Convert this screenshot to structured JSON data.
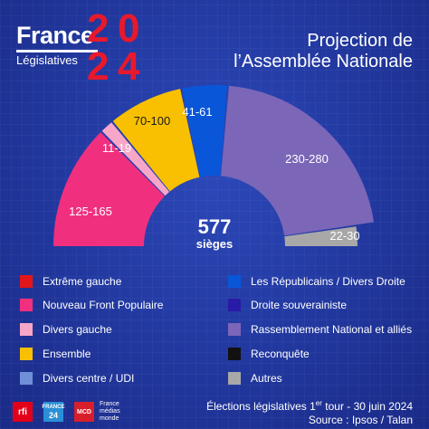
{
  "branding": {
    "france": "France",
    "legislatives": "Législatives",
    "year_digits": [
      "2",
      "0",
      "2",
      "4"
    ]
  },
  "title": {
    "line1": "Projection de",
    "line2": "l’Assemblée Nationale"
  },
  "center_total": "577",
  "center_unit": "sièges",
  "chart_data": {
    "type": "hemicycle",
    "total_seats": 577,
    "segments": [
      {
        "party": "Nouveau Front Populaire",
        "label": "125-165",
        "low": 125,
        "high": 165,
        "color": "#f0307f"
      },
      {
        "party": "Divers gauche",
        "label": "11-19",
        "low": 11,
        "high": 19,
        "color": "#f8a6c8"
      },
      {
        "party": "Ensemble",
        "label": "70-100",
        "low": 70,
        "high": 100,
        "color": "#f8c000"
      },
      {
        "party": "Les Républicains / Divers Droite",
        "label": "41-61",
        "low": 41,
        "high": 61,
        "color": "#0a56d8"
      },
      {
        "party": "Rassemblement National et alliés",
        "label": "230-280",
        "low": 230,
        "high": 280,
        "color": "#7b66b8"
      },
      {
        "party": "Autres",
        "label": "22-30",
        "low": 22,
        "high": 30,
        "color": "#a8a8a8"
      }
    ]
  },
  "legend": [
    {
      "label": "Extrême gauche",
      "color": "#e3151a"
    },
    {
      "label": "Les Républicains / Divers Droite",
      "color": "#0a56d8"
    },
    {
      "label": "Nouveau Front Populaire",
      "color": "#f0307f"
    },
    {
      "label": "Droite souverainiste",
      "color": "#2a1aa8"
    },
    {
      "label": "Divers gauche",
      "color": "#f8a6c8"
    },
    {
      "label": "Rassemblement National et alliés",
      "color": "#7b66b8"
    },
    {
      "label": "Ensemble",
      "color": "#f8c000"
    },
    {
      "label": "Reconquête",
      "color": "#111111"
    },
    {
      "label": "Divers centre / UDI",
      "color": "#6f8fd8"
    },
    {
      "label": "Autres",
      "color": "#a8a8a8"
    }
  ],
  "footer": {
    "line1_pre": "Élections législatives 1",
    "line1_sup": "er",
    "line1_post": " tour - 30 juin 2024",
    "line2": "Source : Ipsos / Talan"
  },
  "logos": {
    "rfi": "rfi",
    "france24_top": "FRANCE",
    "france24_bottom": "24",
    "mcd": "MCD",
    "fmm_1": "France",
    "fmm_2": "médias",
    "fmm_3": "monde"
  }
}
